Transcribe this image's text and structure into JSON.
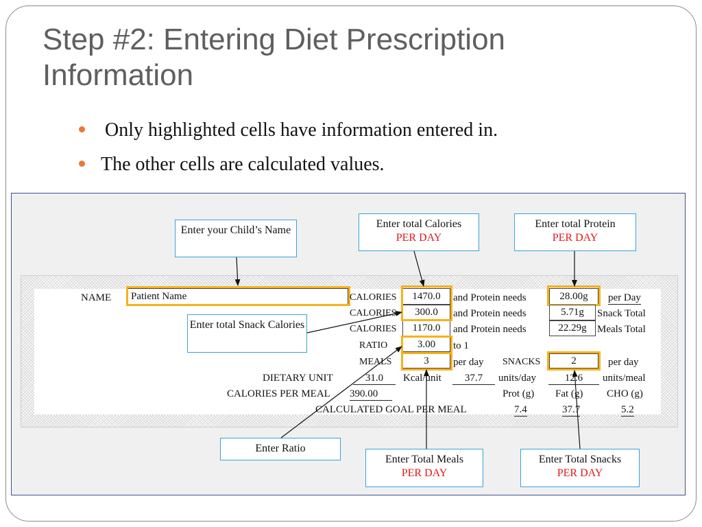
{
  "slide": {
    "title_line1": "Step #2: Entering Diet Prescription",
    "title_line2": "Information",
    "bullets": [
      "Only highlighted cells have information entered in.",
      "The other cells are calculated values."
    ]
  },
  "colors": {
    "accent": "#e8793a",
    "highlight": "#f5b21b",
    "callout_border": "#3aa3d4",
    "per_day_red": "#e01818",
    "panel_border": "#3e4f8c"
  },
  "sheet": {
    "name_label": "NAME",
    "patient_name": "Patient Name",
    "calories_label": "CALORIES",
    "calories_total": "1470.0",
    "snack_calories": "300.0",
    "meal_calories": "1170.0",
    "ratio_label": "RATIO",
    "ratio_value": "3.00",
    "to_one": "to 1",
    "meals_label": "MEALS",
    "meals_value": "3",
    "per_day": "per day",
    "snacks_label": "SNACKS",
    "snacks_value": "2",
    "protein_needs_label": "and Protein needs",
    "protein_total": "28.00g",
    "protein_per_day": "per Day",
    "protein_snack": "5.71g",
    "snack_total_label": "Snack Total",
    "protein_meals": "22.29g",
    "meals_total_label": "Meals Total",
    "dietary_unit_label": "DIETARY UNIT",
    "dietary_unit_value": "31.0",
    "kcal_unit": "Kcal/unit",
    "units_day_value": "37.7",
    "units_day_label": "units/day",
    "units_meal_value": "12.6",
    "units_meal_label": "units/meal",
    "calories_per_meal_label": "CALORIES PER MEAL",
    "calories_per_meal_value": "390.00",
    "prot_label": "Prot (g)",
    "fat_label": "Fat (g)",
    "cho_label": "CHO (g)",
    "goal_label": "CALCULATED GOAL PER MEAL",
    "goal_prot": "7.4",
    "goal_fat": "37.7",
    "goal_cho": "5.2"
  },
  "callouts": {
    "child_name": "Enter your Child’s Name",
    "total_calories": "Enter total Calories",
    "total_protein": "Enter total Protein",
    "per_day_caps": "PER DAY",
    "snack_calories": "Enter total Snack Calories",
    "ratio": "Enter Ratio",
    "total_meals": "Enter Total Meals",
    "total_snacks": "Enter Total Snacks"
  }
}
